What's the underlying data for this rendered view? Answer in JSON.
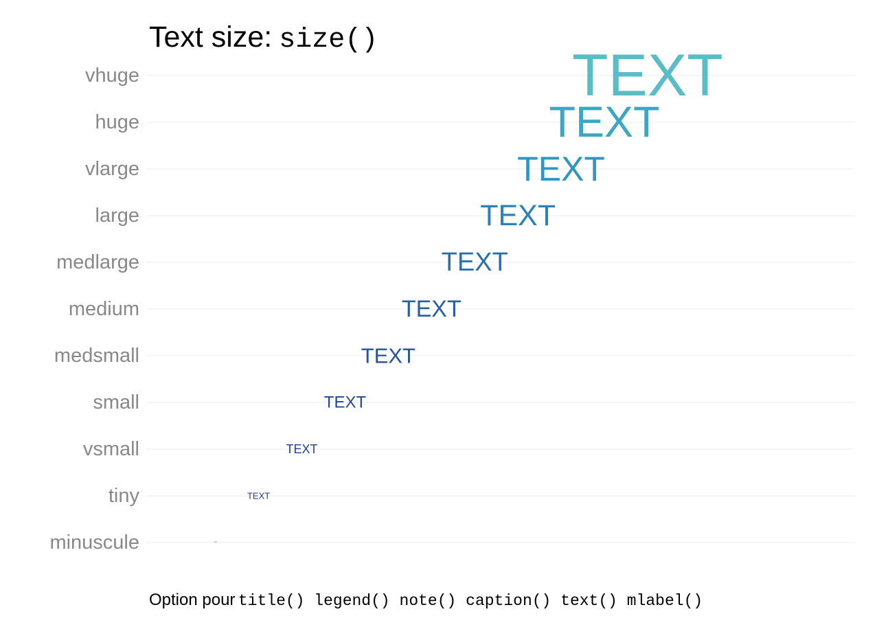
{
  "chart_data": {
    "type": "scatter",
    "title": "Text size:",
    "title_code": "size()",
    "note_text": "Option pour",
    "note_code": "title() legend() note() caption() text() mlabel()",
    "categories": [
      "minuscule",
      "tiny",
      "vsmall",
      "small",
      "medsmall",
      "medium",
      "medlarge",
      "large",
      "vlarge",
      "huge",
      "vhuge"
    ],
    "x": [
      1,
      2,
      3,
      4,
      5,
      6,
      7,
      8,
      9,
      10,
      11
    ],
    "marker_label": "TEXT",
    "marker_sizes": [
      2,
      13,
      18,
      24,
      31,
      34,
      38,
      43,
      50,
      63,
      86
    ],
    "colors": [
      "#1f2f7a",
      "#233a8a",
      "#243f8f",
      "#264894",
      "#27519b",
      "#275fa1",
      "#2a6fae",
      "#2b82b8",
      "#2f96bf",
      "#3aa8c4",
      "#5abcc6"
    ],
    "xlim": [
      -0.6,
      15.8
    ],
    "ylim": [
      0,
      12
    ],
    "grid": true,
    "legend": "none",
    "label_color": "#888888"
  }
}
